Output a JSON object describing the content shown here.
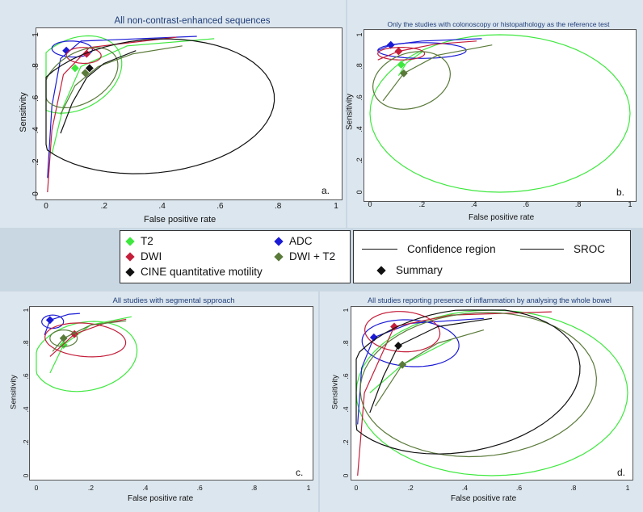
{
  "colors": {
    "T2": "#3ee83e",
    "ADC": "#1a1ad6",
    "DWI": "#c41e3a",
    "CINE": "#111111",
    "DWI_T2": "#5a7a3a"
  },
  "legend": {
    "items": [
      {
        "label": "T2",
        "color": "#3ee83e"
      },
      {
        "label": "ADC",
        "color": "#1a1ad6"
      },
      {
        "label": "DWI",
        "color": "#c41e3a"
      },
      {
        "label": "DWI + T2",
        "color": "#5a7a3a"
      },
      {
        "label": "CINE quantitative motility",
        "color": "#111111"
      }
    ],
    "confidence_region": "Confidence region",
    "sroc": "SROC",
    "summary": "Summary"
  },
  "chart_data": [
    {
      "type": "scatter",
      "panel": "a.",
      "title": "All non-contrast-enhanced sequences",
      "xlabel": "False positive rate",
      "ylabel": "Sensitivity",
      "xlim": [
        0,
        1
      ],
      "ylim": [
        0,
        1
      ],
      "xticks": [
        "0",
        ".2",
        ".4",
        ".6",
        ".8",
        "1"
      ],
      "yticks": [
        "0",
        ".2",
        ".4",
        ".6",
        ".8",
        "1"
      ],
      "series": [
        {
          "name": "T2",
          "color": "#3ee83e",
          "summary": [
            0.1,
            0.79
          ],
          "sroc": [
            [
              0.02,
              0.25
            ],
            [
              0.06,
              0.55
            ],
            [
              0.12,
              0.8
            ],
            [
              0.28,
              0.93
            ],
            [
              0.58,
              0.975
            ]
          ],
          "conf": [
            0.1,
            0.75,
            0.15,
            0.25,
            -0.3
          ]
        },
        {
          "name": "ADC",
          "color": "#1a1ad6",
          "summary": [
            0.07,
            0.9
          ],
          "sroc": [
            [
              0.005,
              0.1
            ],
            [
              0.02,
              0.55
            ],
            [
              0.05,
              0.85
            ],
            [
              0.12,
              0.96
            ],
            [
              0.52,
              0.99
            ]
          ],
          "conf": [
            0.09,
            0.91,
            0.07,
            0.05,
            -0.1
          ]
        },
        {
          "name": "DWI",
          "color": "#c41e3a",
          "summary": [
            0.14,
            0.88
          ],
          "sroc": [
            [
              0.005,
              0.01
            ],
            [
              0.02,
              0.4
            ],
            [
              0.06,
              0.75
            ],
            [
              0.15,
              0.92
            ],
            [
              0.45,
              0.985
            ]
          ],
          "conf": [
            0.13,
            0.87,
            0.06,
            0.05,
            -0.1
          ]
        },
        {
          "name": "DWI + T2",
          "color": "#5a7a3a",
          "summary": [
            0.135,
            0.76
          ],
          "sroc": [
            [
              0.05,
              0.5
            ],
            [
              0.1,
              0.68
            ],
            [
              0.18,
              0.8
            ],
            [
              0.3,
              0.88
            ],
            [
              0.47,
              0.93
            ]
          ],
          "conf": [
            0.12,
            0.73,
            0.11,
            0.2,
            -0.4
          ]
        },
        {
          "name": "CINE quantitative motility",
          "color": "#111111",
          "summary": [
            0.15,
            0.79
          ],
          "sroc": [
            [
              0.05,
              0.38
            ],
            [
              0.09,
              0.57
            ],
            [
              0.14,
              0.73
            ],
            [
              0.2,
              0.82
            ],
            [
              0.31,
              0.9
            ]
          ],
          "conf": [
            0.36,
            0.55,
            0.4,
            0.45,
            -0.82
          ]
        }
      ]
    },
    {
      "type": "scatter",
      "panel": "b.",
      "title": "Only the studies with colonoscopy or histopathology as the reference test",
      "xlabel": "False positive rate",
      "ylabel": "Sensitivity",
      "xlim": [
        0,
        1
      ],
      "ylim": [
        0,
        1
      ],
      "xticks": [
        "0",
        ".2",
        ".4",
        ".6",
        ".8",
        "1"
      ],
      "yticks": [
        "0",
        ".2",
        ".4",
        ".6",
        ".8",
        "1"
      ],
      "series": [
        {
          "name": "T2",
          "color": "#3ee83e",
          "summary": [
            0.12,
            0.81
          ],
          "sroc": [
            [
              0.11,
              0.74
            ],
            [
              0.14,
              0.82
            ],
            [
              0.2,
              0.89
            ]
          ],
          "conf": [
            0.5,
            0.5,
            0.5,
            0.5,
            0
          ]
        },
        {
          "name": "ADC",
          "color": "#1a1ad6",
          "summary": [
            0.08,
            0.935
          ],
          "sroc": [
            [
              0.03,
              0.9
            ],
            [
              0.08,
              0.935
            ],
            [
              0.2,
              0.96
            ],
            [
              0.43,
              0.975
            ]
          ],
          "conf": [
            0.2,
            0.9,
            0.17,
            0.05,
            0
          ]
        },
        {
          "name": "DWI",
          "color": "#c41e3a",
          "summary": [
            0.11,
            0.895
          ],
          "sroc": [
            [
              0.03,
              0.84
            ],
            [
              0.11,
              0.895
            ],
            [
              0.25,
              0.94
            ],
            [
              0.41,
              0.96
            ]
          ],
          "conf": [
            0.12,
            0.88,
            0.09,
            0.04,
            0
          ]
        },
        {
          "name": "DWI + T2",
          "color": "#5a7a3a",
          "summary": [
            0.13,
            0.755
          ],
          "sroc": [
            [
              0.05,
              0.58
            ],
            [
              0.13,
              0.755
            ],
            [
              0.26,
              0.87
            ],
            [
              0.47,
              0.935
            ]
          ],
          "conf": [
            0.16,
            0.71,
            0.14,
            0.19,
            -0.4
          ]
        }
      ]
    },
    {
      "type": "scatter",
      "panel": "c.",
      "title": "All studies with segmental spproach",
      "xlabel": "False positive rate",
      "ylabel": "Sensitivity",
      "xlim": [
        0,
        1
      ],
      "ylim": [
        0,
        1
      ],
      "xticks": [
        "0",
        ".2",
        ".4",
        ".6",
        ".8",
        "1"
      ],
      "yticks": [
        "0",
        ".2",
        ".4",
        ".6",
        ".8",
        "1"
      ],
      "series": [
        {
          "name": "T2",
          "color": "#3ee83e",
          "summary": [
            0.1,
            0.79
          ],
          "sroc": [
            [
              0.05,
              0.62
            ],
            [
              0.1,
              0.79
            ],
            [
              0.2,
              0.91
            ],
            [
              0.35,
              0.96
            ]
          ],
          "conf": [
            0.18,
            0.72,
            0.18,
            0.22,
            -0.5
          ]
        },
        {
          "name": "ADC",
          "color": "#1a1ad6",
          "summary": [
            0.05,
            0.94
          ],
          "sroc": [
            [
              0.03,
              0.85
            ],
            [
              0.05,
              0.94
            ],
            [
              0.12,
              0.975
            ],
            [
              0.16,
              0.98
            ]
          ],
          "conf": [
            0.06,
            0.93,
            0.04,
            0.04,
            0
          ]
        },
        {
          "name": "DWI",
          "color": "#c41e3a",
          "summary": [
            0.14,
            0.855
          ],
          "sroc": [
            [
              0.05,
              0.72
            ],
            [
              0.14,
              0.855
            ],
            [
              0.25,
              0.92
            ],
            [
              0.33,
              0.945
            ]
          ],
          "conf": [
            0.18,
            0.82,
            0.15,
            0.1,
            -0.2
          ]
        },
        {
          "name": "DWI + T2",
          "color": "#5a7a3a",
          "summary": [
            0.1,
            0.83
          ],
          "sroc": [
            [
              0.06,
              0.75
            ],
            [
              0.1,
              0.83
            ],
            [
              0.2,
              0.91
            ],
            [
              0.33,
              0.935
            ]
          ],
          "conf": [
            0.1,
            0.83,
            0.05,
            0.05,
            0
          ]
        }
      ]
    },
    {
      "type": "scatter",
      "panel": "d.",
      "title": "All studies reporting presence of inflammation by analysing the whole bowel",
      "xlabel": "False positive rate",
      "ylabel": "Sensitivity",
      "xlim": [
        0,
        1
      ],
      "ylim": [
        0,
        1
      ],
      "xticks": [
        "0",
        ".2",
        ".4",
        ".6",
        ".8",
        "1"
      ],
      "yticks": [
        "0",
        ".2",
        ".4",
        ".6",
        ".8",
        "1"
      ],
      "series": [
        {
          "name": "T2",
          "color": "#3ee83e",
          "summary": [
            0.17,
            0.67
          ],
          "sroc": [
            [
              0.05,
              0.5
            ],
            [
              0.17,
              0.67
            ],
            [
              0.35,
              0.82
            ]
          ],
          "conf": [
            0.5,
            0.5,
            0.5,
            0.5,
            0
          ]
        },
        {
          "name": "ADC",
          "color": "#1a1ad6",
          "summary": [
            0.065,
            0.835
          ],
          "sroc": [
            [
              0.005,
              0.31
            ],
            [
              0.02,
              0.65
            ],
            [
              0.065,
              0.835
            ],
            [
              0.2,
              0.92
            ],
            [
              0.47,
              0.95
            ]
          ],
          "conf": [
            0.2,
            0.8,
            0.18,
            0.14,
            -0.2
          ]
        },
        {
          "name": "DWI",
          "color": "#c41e3a",
          "summary": [
            0.14,
            0.9
          ],
          "sroc": [
            [
              0.005,
              0.0
            ],
            [
              0.03,
              0.5
            ],
            [
              0.14,
              0.9
            ],
            [
              0.35,
              0.97
            ],
            [
              0.72,
              0.99
            ]
          ],
          "conf": [
            0.17,
            0.87,
            0.14,
            0.12,
            -0.3
          ]
        },
        {
          "name": "DWI + T2",
          "color": "#5a7a3a",
          "summary": [
            0.17,
            0.67
          ],
          "sroc": [
            [
              0.07,
              0.42
            ],
            [
              0.17,
              0.67
            ],
            [
              0.3,
              0.8
            ],
            [
              0.47,
              0.88
            ]
          ],
          "conf": [
            0.45,
            0.55,
            0.42,
            0.45,
            -0.78
          ]
        },
        {
          "name": "CINE quantitative motility",
          "color": "#111111",
          "summary": [
            0.155,
            0.785
          ],
          "sroc": [
            [
              0.05,
              0.38
            ],
            [
              0.1,
              0.6
            ],
            [
              0.155,
              0.785
            ],
            [
              0.3,
              0.9
            ],
            [
              0.5,
              0.95
            ]
          ],
          "conf": [
            0.38,
            0.57,
            0.4,
            0.48,
            -0.82
          ]
        }
      ]
    }
  ]
}
